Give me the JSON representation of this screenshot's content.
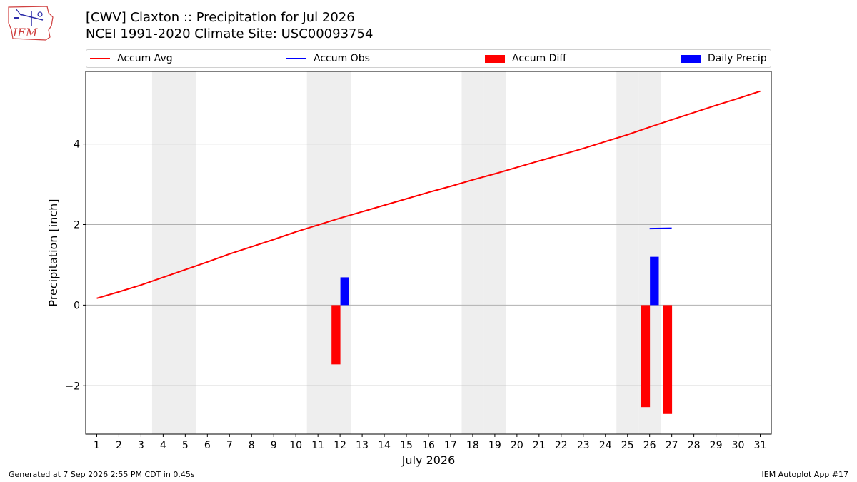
{
  "header": {
    "title_line1": "[CWV] Claxton :: Precipitation for Jul 2026",
    "title_line2": "NCEI 1991-2020 Climate Site: USC00093754",
    "logo_text": "IEM"
  },
  "footer": {
    "left": "Generated at 7 Sep 2026 2:55 PM CDT in 0.45s",
    "right": "IEM Autoplot App #17"
  },
  "colors": {
    "avg": "#ff0000",
    "obs": "#0000ff",
    "diff": "#ff0000",
    "daily": "#0000ff",
    "weekend": "#eeeeee",
    "grid": "#b0b0b0"
  },
  "chart_data": {
    "type": "bar",
    "xlabel": "July 2026",
    "ylabel": "Precipitation [inch]",
    "xlim": [
      0.5,
      31.5
    ],
    "ylim": [
      -3.2,
      5.8
    ],
    "yticks": [
      -2,
      0,
      2,
      4
    ],
    "y_tick_labels": [
      "−2",
      "0",
      "2",
      "4"
    ],
    "days": [
      1,
      2,
      3,
      4,
      5,
      6,
      7,
      8,
      9,
      10,
      11,
      12,
      13,
      14,
      15,
      16,
      17,
      18,
      19,
      20,
      21,
      22,
      23,
      24,
      25,
      26,
      27,
      28,
      29,
      30,
      31
    ],
    "weekend_days": [
      4,
      5,
      11,
      12,
      18,
      19,
      25,
      26
    ],
    "grid": "horizontal",
    "legend_position": "top",
    "legend": [
      {
        "label": "Accum Avg",
        "kind": "line",
        "color": "#ff0000"
      },
      {
        "label": "Accum Obs",
        "kind": "line",
        "color": "#0000ff"
      },
      {
        "label": "Accum Diff",
        "kind": "bar",
        "color": "#ff0000"
      },
      {
        "label": "Daily Precip",
        "kind": "bar",
        "color": "#0000ff"
      }
    ],
    "series": [
      {
        "name": "Accum Avg",
        "type": "line",
        "x": [
          1,
          2,
          3,
          4,
          5,
          6,
          7,
          8,
          9,
          10,
          11,
          12,
          13,
          14,
          15,
          16,
          17,
          18,
          19,
          20,
          21,
          22,
          23,
          24,
          25,
          26,
          27,
          28,
          29,
          30,
          31
        ],
        "values": [
          0.17,
          0.33,
          0.5,
          0.69,
          0.88,
          1.07,
          1.27,
          1.45,
          1.63,
          1.82,
          1.99,
          2.16,
          2.32,
          2.48,
          2.64,
          2.8,
          2.95,
          3.11,
          3.26,
          3.42,
          3.58,
          3.73,
          3.89,
          4.06,
          4.23,
          4.42,
          4.6,
          4.78,
          4.96,
          5.13,
          5.31
        ]
      },
      {
        "name": "Accum Obs",
        "type": "line",
        "x": [
          26,
          27
        ],
        "values": [
          1.9,
          1.91
        ]
      },
      {
        "name": "Accum Diff",
        "type": "bar",
        "x": [
          12,
          26,
          27
        ],
        "values": [
          -1.47,
          -2.53,
          -2.7
        ]
      },
      {
        "name": "Daily Precip",
        "type": "bar",
        "x": [
          12,
          26
        ],
        "values": [
          0.69,
          1.2
        ]
      }
    ]
  }
}
